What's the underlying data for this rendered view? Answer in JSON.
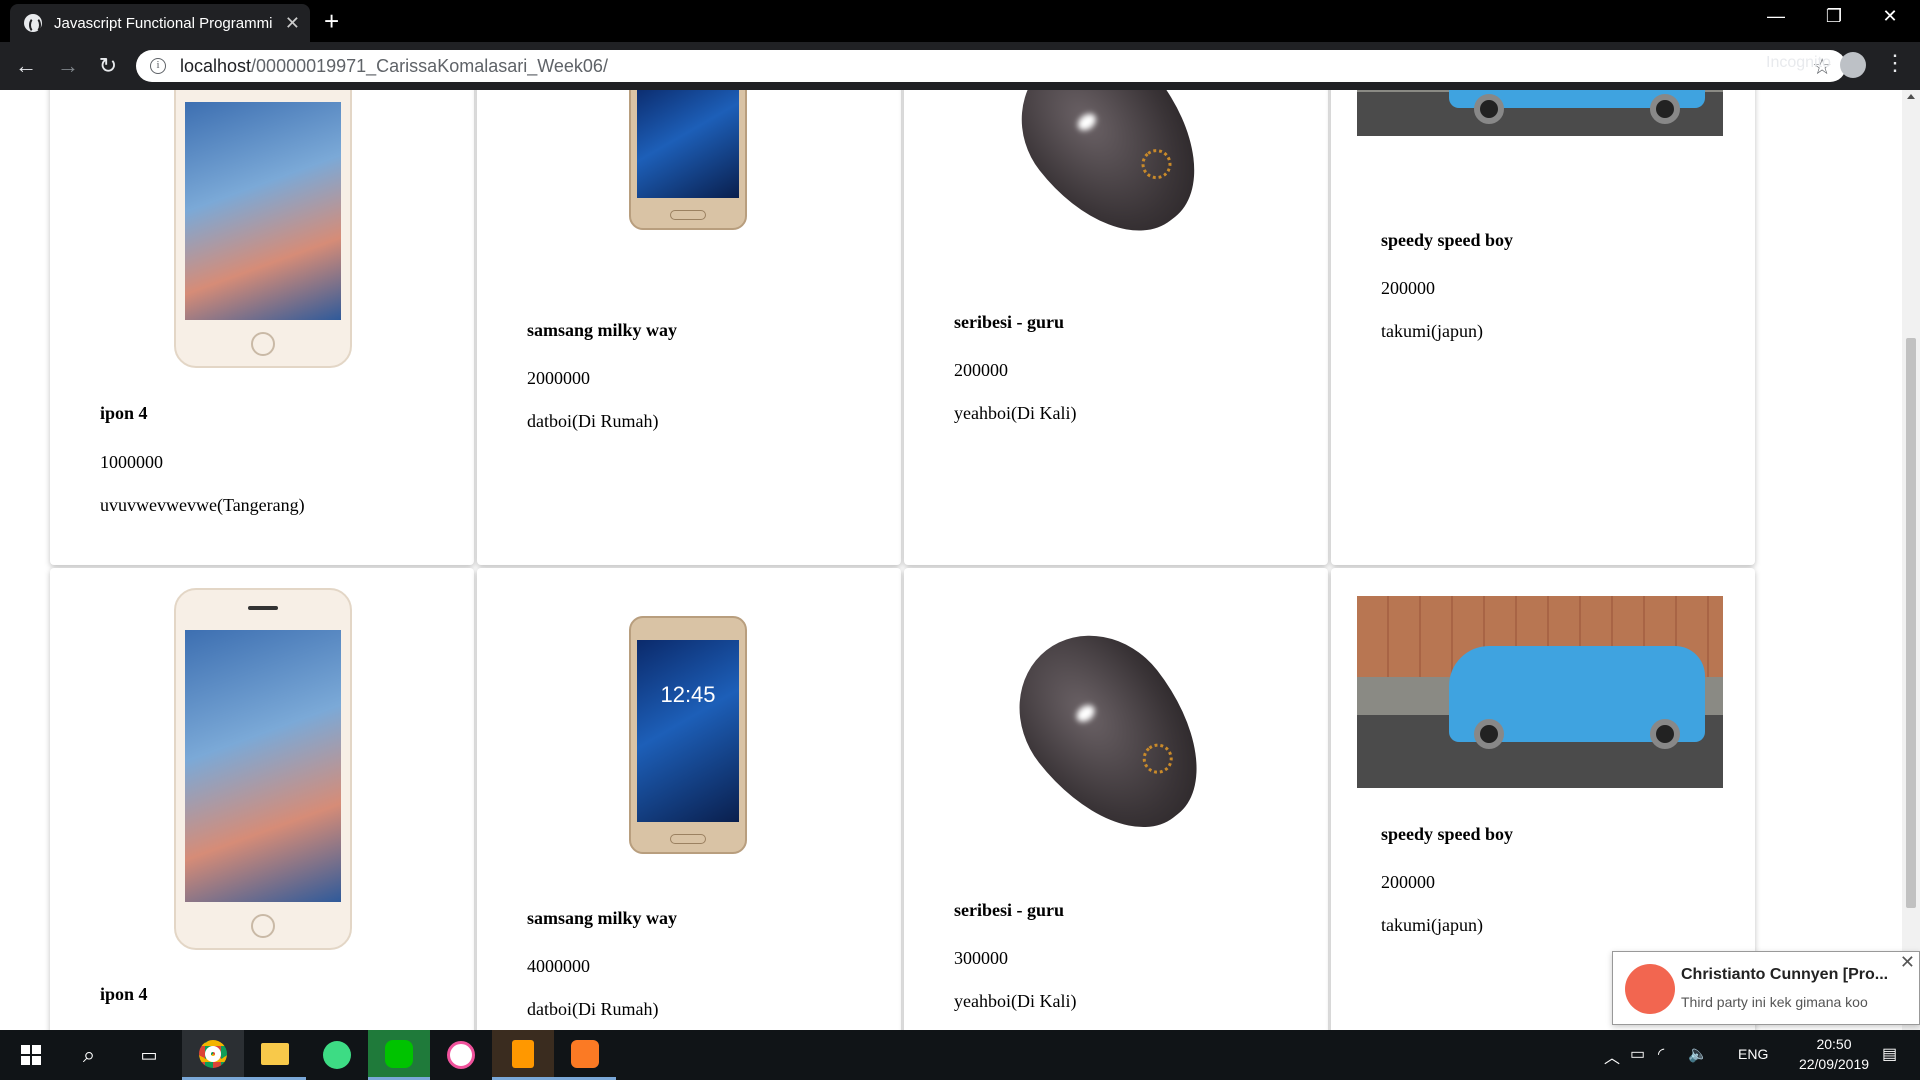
{
  "browser": {
    "tab_title": "Javascript Functional Programmi",
    "url_host": "localhost",
    "url_path": "/00000019971_CarissaKomalasari_Week06/",
    "incognito_label": "Incognito",
    "new_tab_symbol": "+",
    "close_symbol": "✕"
  },
  "products": [
    {
      "name": "ipon 4",
      "price": "1000000",
      "location": "uvuvwevwevwe(Tangerang)"
    },
    {
      "name": "samsang milky way",
      "price": "2000000",
      "location": "datboi(Di Rumah)"
    },
    {
      "name": "seribesi - guru",
      "price": "200000",
      "location": "yeahboi(Di Kali)"
    },
    {
      "name": "speedy speed boy",
      "price": "200000",
      "location": "takumi(japun)"
    },
    {
      "name": "ipon 4",
      "price": "",
      "location": ""
    },
    {
      "name": "samsang milky way",
      "price": "4000000",
      "location": "datboi(Di Rumah)"
    },
    {
      "name": "seribesi - guru",
      "price": "300000",
      "location": "yeahboi(Di Kali)"
    },
    {
      "name": "speedy speed boy",
      "price": "200000",
      "location": "takumi(japun)"
    }
  ],
  "samsung_clock": "12:45",
  "notification": {
    "sender": "Christianto Cunnyen [Pro...",
    "message": "Third party ini kek gimana koo"
  },
  "taskbar": {
    "language": "ENG",
    "time": "20:50",
    "date": "22/09/2019"
  }
}
